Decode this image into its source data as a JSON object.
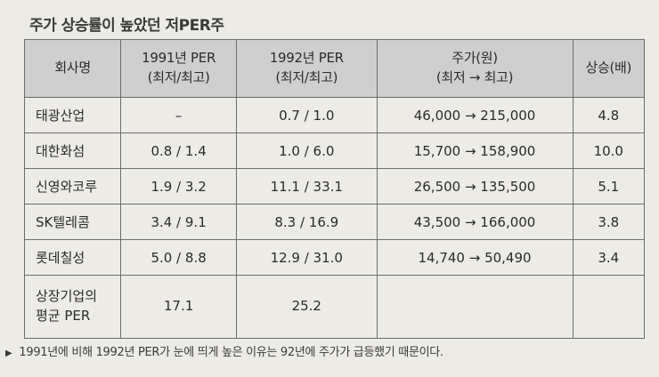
{
  "title": "주가 상승률이 높았던 저PER주",
  "table": {
    "headers": [
      "회사명",
      "1991년 PER\n(최저/최고)",
      "1992년 PER\n(최저/최고)",
      "주가(원)\n(최저 → 최고)",
      "상승(배)"
    ],
    "rows": [
      [
        "태광산업",
        "–",
        "0.7 / 1.0",
        "46,000 → 215,000",
        "4.8"
      ],
      [
        "대한화섬",
        "0.8 / 1.4",
        "1.0 / 6.0",
        "15,700 → 158,900",
        "10.0"
      ],
      [
        "신영와코루",
        "1.9 / 3.2",
        "11.1 / 33.1",
        "26,500 → 135,500",
        "5.1"
      ],
      [
        "SK텔레콤",
        "3.4 / 9.1",
        "8.3 / 16.9",
        "43,500 → 166,000",
        "3.8"
      ],
      [
        "롯데칠성",
        "5.0 / 8.8",
        "12.9 / 31.0",
        "14,740 → 50,490",
        "3.4"
      ],
      [
        "상장기업의\n평균 PER",
        "17.1",
        "25.2",
        "",
        ""
      ]
    ]
  },
  "note": {
    "marker": "▶",
    "text": "1991년에 비해 1992년 PER가 눈에 띄게 높은 이유는 92년에 주가가 급등했기 때문이다."
  }
}
